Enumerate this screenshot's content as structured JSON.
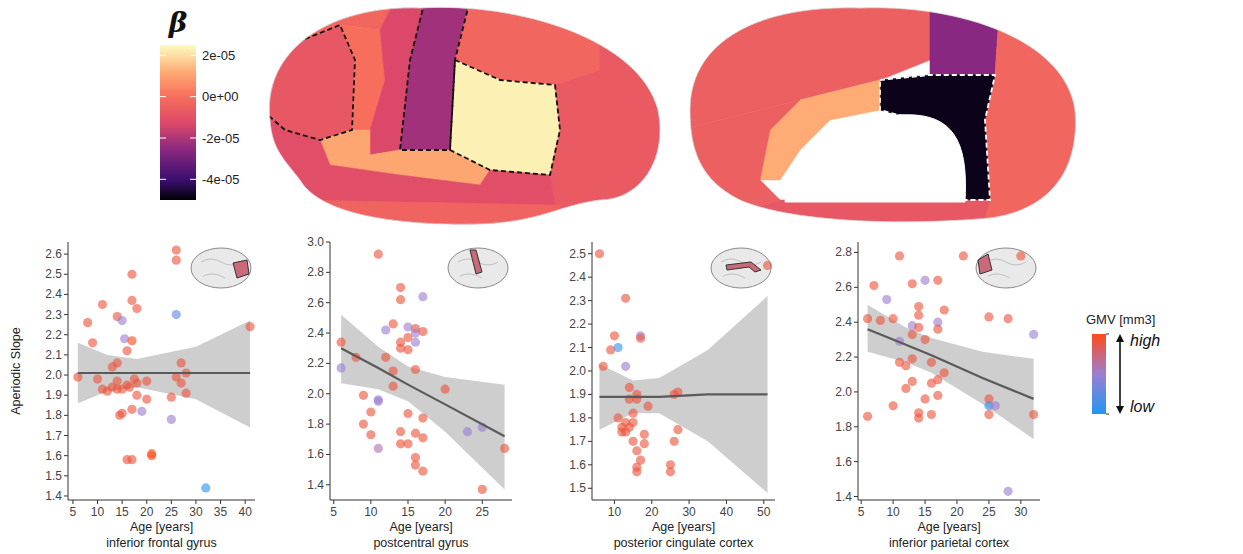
{
  "chart_data": [
    {
      "type": "brain_map",
      "values": [
        -3e-06,
        -8e-06,
        0,
        -1.3e-05,
        -2.2e-05,
        -3e-06,
        2.3e-05,
        -7e-06,
        1.1e-05,
        -1.1e-05,
        -4e-06
      ],
      "color_title": "β",
      "color_range": [
        -5e-05,
        2.5e-05
      ],
      "color_ticks": [
        {
          "value": 2e-05,
          "label": "2e-05"
        },
        {
          "value": 0,
          "label": "0e+00"
        },
        {
          "value": -2e-05,
          "label": "-2e-05"
        },
        {
          "value": -4e-05,
          "label": "-4e-05"
        }
      ]
    },
    {
      "type": "brain_map",
      "values": [
        -5e-06,
        -2.6e-05,
        -3e-06,
        -4.8e-05,
        1.2e-05,
        -5e-06,
        -8e-06
      ]
    },
    {
      "type": "scatter",
      "title": "inferior frontal gyrus",
      "x_label": "Age [years]",
      "y_label": "Aperiodic Slope",
      "xlim": [
        4,
        42
      ],
      "ylim": [
        1.38,
        2.66
      ],
      "xticks": [
        5,
        10,
        15,
        20,
        25,
        30,
        35,
        40
      ],
      "yticks": [
        1.4,
        1.5,
        1.6,
        1.7,
        1.8,
        1.9,
        {
          "value": 2,
          "label": "2.0"
        },
        2.1,
        2.2,
        2.3,
        2.4,
        2.5,
        2.6
      ],
      "x": [
        6,
        8,
        9,
        10,
        11,
        11,
        12,
        13,
        13,
        14,
        14,
        14,
        14,
        14.5,
        15,
        15,
        15,
        15.5,
        16,
        16,
        16,
        16.5,
        17,
        17,
        17,
        17,
        17,
        17.5,
        18,
        18,
        18,
        19,
        20,
        20,
        21,
        21,
        25,
        25,
        26,
        26,
        26,
        26,
        27,
        27,
        28,
        28,
        32,
        41
      ],
      "y": [
        1.99,
        2.26,
        2.16,
        1.98,
        2.35,
        1.93,
        1.92,
        1.94,
        2.04,
        2.29,
        1.93,
        1.97,
        2.06,
        1.8,
        2.27,
        1.93,
        1.81,
        2.18,
        2.12,
        1.95,
        1.58,
        1.94,
        2.37,
        2.5,
        2.17,
        1.58,
        1.83,
        1.98,
        2.33,
        1.96,
        1.9,
        1.82,
        1.88,
        1.97,
        1.6,
        1.61,
        1.89,
        1.78,
        2.3,
        2.62,
        2.57,
        1.99,
        2.06,
        1.96,
        2.01,
        1.91,
        1.44,
        2.24
      ],
      "gmv": [
        0.9,
        0.9,
        0.9,
        0.9,
        0.9,
        0.9,
        0.9,
        0.9,
        0.9,
        0.9,
        0.9,
        0.9,
        0.9,
        0.9,
        0.5,
        0.9,
        0.9,
        0.5,
        0.9,
        0.9,
        0.9,
        0.9,
        0.9,
        0.9,
        1,
        0.9,
        0.9,
        0.9,
        0.9,
        0.9,
        0.9,
        0.5,
        0.9,
        0.9,
        1,
        1,
        0.9,
        0.5,
        0.25,
        0.9,
        0.9,
        0.9,
        0.9,
        0.9,
        0.9,
        0.9,
        0.05,
        0.9
      ],
      "fit": {
        "x": [
          6,
          12,
          18,
          30,
          41
        ],
        "y": [
          2.01,
          2.01,
          2.01,
          2.01,
          2.01
        ],
        "lower": [
          1.86,
          1.92,
          1.94,
          1.88,
          1.74
        ],
        "upper": [
          2.16,
          2.1,
          2.08,
          2.14,
          2.27
        ]
      }
    },
    {
      "type": "scatter",
      "title": "postcentral gyrus",
      "x_label": "Age [years]",
      "xlim": [
        4.5,
        29
      ],
      "ylim": [
        1.3,
        3
      ],
      "xticks": [
        5,
        10,
        15,
        20,
        25
      ],
      "yticks": [
        1.4,
        1.6,
        1.8,
        {
          "value": 2,
          "label": "2.0"
        },
        2.2,
        2.4,
        2.6,
        2.8,
        {
          "value": 3,
          "label": "3.0"
        }
      ],
      "x": [
        6,
        6,
        8,
        9,
        9,
        10,
        10,
        11,
        11,
        11,
        11,
        12,
        12,
        13,
        13,
        13,
        14,
        14,
        14,
        14,
        14,
        14,
        15,
        15,
        15,
        15,
        15,
        16,
        16,
        16,
        16,
        16,
        16,
        16,
        17,
        17,
        17,
        17,
        17,
        20,
        23,
        25,
        25,
        28
      ],
      "y": [
        2.17,
        2.34,
        2.24,
        1.99,
        1.8,
        1.73,
        1.88,
        2.92,
        1.96,
        1.95,
        1.64,
        2.24,
        2.42,
        2.15,
        2.05,
        2.46,
        2.7,
        2.62,
        2.3,
        2.34,
        1.67,
        1.75,
        2.29,
        2.37,
        2.44,
        1.87,
        1.67,
        1.58,
        1.53,
        2.43,
        2.4,
        2.34,
        2.16,
        1.74,
        2.64,
        2.41,
        1.84,
        1.71,
        1.49,
        2.03,
        1.75,
        1.78,
        1.37,
        1.64
      ],
      "gmv": [
        0.5,
        0.9,
        0.9,
        0.9,
        0.9,
        0.9,
        0.9,
        0.9,
        0.5,
        0.5,
        0.6,
        0.9,
        0.5,
        0.9,
        0.9,
        0.9,
        0.9,
        0.9,
        0.9,
        0.9,
        0.9,
        0.9,
        0.9,
        0.9,
        0.5,
        0.9,
        0.9,
        0.9,
        0.9,
        0.9,
        0.5,
        0.5,
        0.9,
        0.9,
        0.5,
        0.9,
        0.9,
        0.9,
        0.9,
        0.9,
        0.5,
        0.5,
        0.9,
        0.9
      ],
      "fit": {
        "x": [
          6,
          11,
          15,
          20,
          28
        ],
        "y": [
          2.3,
          2.17,
          2.06,
          1.93,
          1.72
        ],
        "lower": [
          2.07,
          2.03,
          1.95,
          1.75,
          1.37
        ],
        "upper": [
          2.52,
          2.31,
          2.18,
          2.11,
          2.06
        ]
      }
    },
    {
      "type": "scatter",
      "title": "posterior cingulate cortex",
      "x_label": "Age [years]",
      "xlim": [
        4,
        53
      ],
      "ylim": [
        1.45,
        2.55
      ],
      "xticks": [
        10,
        20,
        30,
        40,
        50
      ],
      "yticks": [
        1.5,
        1.6,
        1.7,
        1.8,
        1.9,
        {
          "value": 2,
          "label": "2.0"
        },
        2.1,
        2.2,
        2.3,
        2.4,
        2.5
      ],
      "x": [
        6,
        7,
        9,
        10,
        11,
        11,
        12,
        12,
        13,
        13,
        13,
        13,
        14,
        14,
        14,
        15,
        15,
        15,
        16,
        16,
        16,
        16,
        16,
        17,
        17,
        17,
        18,
        18,
        19,
        25,
        25,
        26,
        26,
        27,
        27,
        51
      ],
      "y": [
        2.5,
        2.02,
        2.09,
        2.15,
        2.1,
        1.8,
        1.76,
        1.74,
        2.31,
        2.02,
        1.78,
        1.74,
        1.76,
        1.88,
        1.93,
        1.82,
        1.78,
        1.7,
        1.59,
        1.57,
        1.88,
        1.9,
        1.66,
        2.15,
        2.14,
        1.62,
        1.73,
        1.69,
        1.85,
        1.6,
        1.57,
        1.7,
        1.9,
        1.91,
        1.75,
        2.45
      ],
      "gmv": [
        0.9,
        0.9,
        0.9,
        0.9,
        0.1,
        0.9,
        0.9,
        0.9,
        0.9,
        0.5,
        0.9,
        0.9,
        0.9,
        0.9,
        0.9,
        0.9,
        0.9,
        0.9,
        0.9,
        0.9,
        0.9,
        0.9,
        0.9,
        0.5,
        0.9,
        0.9,
        0.9,
        0.9,
        0.9,
        0.9,
        0.9,
        0.9,
        0.9,
        0.9,
        0.9,
        0.9
      ],
      "fit": {
        "x": [
          6,
          15,
          22,
          35,
          51
        ],
        "y": [
          1.89,
          1.89,
          1.89,
          1.9,
          1.9
        ],
        "lower": [
          1.75,
          1.82,
          1.82,
          1.7,
          1.48
        ],
        "upper": [
          2.03,
          1.96,
          1.97,
          2.09,
          2.32
        ]
      }
    },
    {
      "type": "scatter",
      "title": "inferior parietal cortex",
      "x_label": "Age [years]",
      "xlim": [
        4.5,
        33
      ],
      "ylim": [
        1.38,
        2.86
      ],
      "xticks": [
        5,
        10,
        15,
        20,
        25,
        30
      ],
      "yticks": [
        1.4,
        1.6,
        1.8,
        {
          "value": 2,
          "label": "2.0"
        },
        2.2,
        2.4,
        2.6,
        2.8
      ],
      "x": [
        6,
        6,
        7,
        8,
        9,
        10,
        10,
        11,
        11,
        11,
        12,
        12,
        13,
        13,
        13,
        13,
        13,
        14,
        14,
        14,
        14,
        14,
        15,
        15,
        15,
        16,
        16,
        16,
        17,
        17,
        17,
        17,
        17,
        18,
        18,
        21,
        25,
        25,
        25,
        25,
        26,
        28,
        28,
        30,
        32,
        32
      ],
      "y": [
        1.86,
        2.42,
        2.61,
        2.41,
        2.53,
        2.42,
        1.92,
        2.78,
        2.17,
        2.29,
        2.02,
        2.15,
        2.33,
        2.38,
        2.62,
        2.19,
        2.06,
        2.49,
        2.44,
        1.88,
        1.85,
        2.37,
        2.64,
        2.3,
        1.96,
        2.17,
        1.87,
        2.05,
        2.4,
        2.36,
        2.64,
        2.07,
        1.98,
        2.47,
        2.11,
        2.78,
        1.96,
        1.92,
        1.87,
        2.43,
        1.92,
        1.43,
        2.42,
        2.78,
        2.33,
        1.87
      ],
      "gmv": [
        0.9,
        0.9,
        0.9,
        0.9,
        0.5,
        0.9,
        0.9,
        0.9,
        0.9,
        0.5,
        0.9,
        0.9,
        0.9,
        0.5,
        0.9,
        0.9,
        0.9,
        0.9,
        0.9,
        0.9,
        0.9,
        0.9,
        0.5,
        0.9,
        0.9,
        0.9,
        0.9,
        0.9,
        0.5,
        0.9,
        0.9,
        0.9,
        0.9,
        0.9,
        0.9,
        0.9,
        0.9,
        0.1,
        0.9,
        0.9,
        0.5,
        0.5,
        0.9,
        0.9,
        0.5,
        0.9
      ],
      "fit": {
        "x": [
          6,
          12,
          16,
          24,
          32
        ],
        "y": [
          2.36,
          2.27,
          2.21,
          2.08,
          1.96
        ],
        "lower": [
          2.23,
          2.17,
          2.11,
          1.93,
          1.73
        ],
        "upper": [
          2.5,
          2.37,
          2.31,
          2.23,
          2.19
        ]
      },
      "gmv_title": "GMV [mm3]",
      "gmv_range": [
        0,
        1
      ],
      "gmv_ticks": [
        {
          "value": 1,
          "label": "high"
        },
        {
          "value": 0,
          "label": "low"
        }
      ]
    }
  ]
}
